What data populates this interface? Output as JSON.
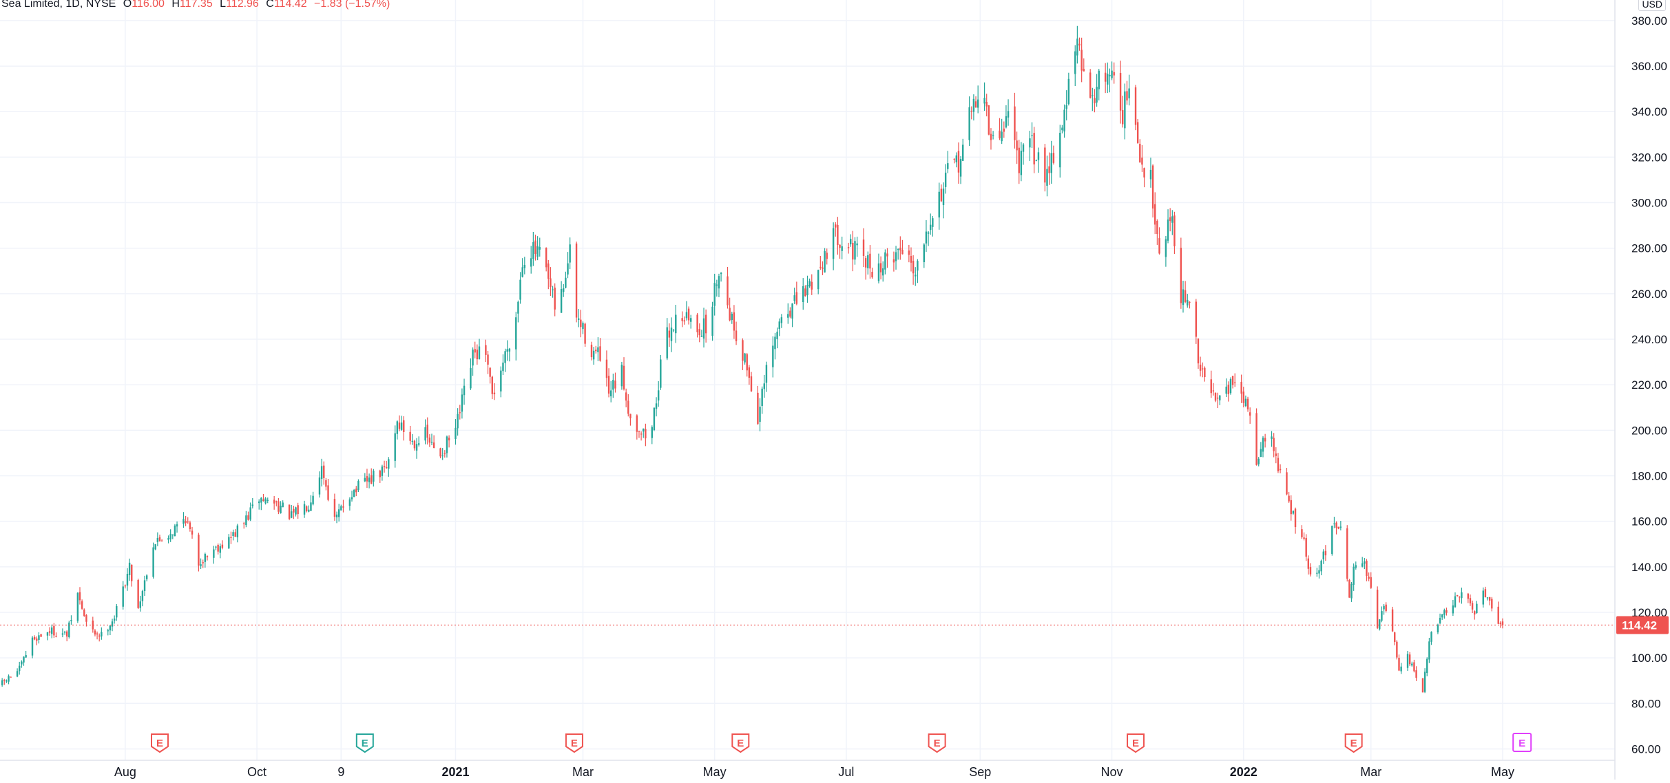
{
  "legend": {
    "symbol": "Sea Limited, 1D, NYSE",
    "o_label": "O",
    "o": "116.00",
    "h_label": "H",
    "h": "117.35",
    "l_label": "L",
    "l": "112.96",
    "c_label": "C",
    "c": "114.42",
    "change": "−1.83 (−1.57%)"
  },
  "currency": "USD",
  "colors": {
    "up": "#26a69a",
    "down": "#ef5350",
    "grid": "#f0f3fa",
    "text": "#131722",
    "price_line": "#ef5350",
    "event_future": "#e040fb"
  },
  "chart_data": {
    "type": "candlestick",
    "title": "Sea Limited, 1D, NYSE",
    "ylim": [
      55,
      383
    ],
    "y_ticks": [
      60,
      80,
      100,
      120,
      140,
      160,
      180,
      200,
      220,
      240,
      260,
      280,
      300,
      320,
      340,
      360,
      380
    ],
    "y_tick_labels": [
      "60.00",
      "80.00",
      "100.00",
      "120.00",
      "140.00",
      "160.00",
      "180.00",
      "200.00",
      "220.00",
      "240.00",
      "260.00",
      "280.00",
      "300.00",
      "320.00",
      "340.00",
      "360.00",
      "380.00"
    ],
    "x_ticks": [
      {
        "label": "Aug",
        "day": 29,
        "bold": false
      },
      {
        "label": "Oct",
        "day": 90,
        "bold": false
      },
      {
        "label": "9",
        "day": 129,
        "bold": false
      },
      {
        "label": "2021",
        "day": 182,
        "bold": true
      },
      {
        "label": "Mar",
        "day": 241,
        "bold": false
      },
      {
        "label": "May",
        "day": 302,
        "bold": false
      },
      {
        "label": "Jul",
        "day": 363,
        "bold": false
      },
      {
        "label": "Sep",
        "day": 425,
        "bold": false
      },
      {
        "label": "Nov",
        "day": 486,
        "bold": false
      },
      {
        "label": "2022",
        "day": 547,
        "bold": true
      },
      {
        "label": "Mar",
        "day": 606,
        "bold": false
      },
      {
        "label": "May",
        "day": 667,
        "bold": false
      }
    ],
    "x_range_days": [
      -29,
      719
    ],
    "last_price": 114.42,
    "last_price_label": "114.42",
    "earnings_events": [
      {
        "day": 45,
        "label": "E",
        "kind": "past"
      },
      {
        "day": 140,
        "label": "E",
        "kind": "positive"
      },
      {
        "day": 237,
        "label": "E",
        "kind": "past"
      },
      {
        "day": 314,
        "label": "E",
        "kind": "past"
      },
      {
        "day": 405,
        "label": "E",
        "kind": "past"
      },
      {
        "day": 497,
        "label": "E",
        "kind": "past"
      },
      {
        "day": 598,
        "label": "E",
        "kind": "past"
      },
      {
        "day": 676,
        "label": "E",
        "kind": "future"
      }
    ],
    "series_anchors_close": [
      [
        -29,
        88
      ],
      [
        -20,
        95
      ],
      [
        -14,
        108
      ],
      [
        -6,
        112
      ],
      [
        2,
        110
      ],
      [
        7,
        128
      ],
      [
        12,
        112
      ],
      [
        18,
        110
      ],
      [
        24,
        118
      ],
      [
        31,
        140
      ],
      [
        35,
        122
      ],
      [
        42,
        150
      ],
      [
        50,
        155
      ],
      [
        57,
        162
      ],
      [
        63,
        142
      ],
      [
        70,
        148
      ],
      [
        77,
        152
      ],
      [
        83,
        158
      ],
      [
        91,
        170
      ],
      [
        99,
        168
      ],
      [
        106,
        162
      ],
      [
        114,
        168
      ],
      [
        120,
        184
      ],
      [
        126,
        160
      ],
      [
        133,
        172
      ],
      [
        142,
        178
      ],
      [
        150,
        183
      ],
      [
        155,
        204
      ],
      [
        162,
        195
      ],
      [
        168,
        198
      ],
      [
        174,
        188
      ],
      [
        182,
        200
      ],
      [
        190,
        232
      ],
      [
        195,
        236
      ],
      [
        199,
        215
      ],
      [
        204,
        230
      ],
      [
        210,
        250
      ],
      [
        213,
        275
      ],
      [
        216,
        280
      ],
      [
        222,
        276
      ],
      [
        229,
        250
      ],
      [
        235,
        278
      ],
      [
        238,
        250
      ],
      [
        245,
        235
      ],
      [
        249,
        232
      ],
      [
        253,
        215
      ],
      [
        259,
        225
      ],
      [
        263,
        205
      ],
      [
        268,
        200
      ],
      [
        272,
        195
      ],
      [
        279,
        240
      ],
      [
        286,
        252
      ],
      [
        294,
        245
      ],
      [
        299,
        245
      ],
      [
        304,
        272
      ],
      [
        311,
        245
      ],
      [
        317,
        228
      ],
      [
        322,
        205
      ],
      [
        326,
        225
      ],
      [
        333,
        250
      ],
      [
        342,
        258
      ],
      [
        350,
        270
      ],
      [
        356,
        285
      ],
      [
        361,
        285
      ],
      [
        370,
        275
      ],
      [
        377,
        270
      ],
      [
        385,
        278
      ],
      [
        391,
        280
      ],
      [
        395,
        270
      ],
      [
        400,
        290
      ],
      [
        405,
        300
      ],
      [
        410,
        312
      ],
      [
        415,
        318
      ],
      [
        421,
        340
      ],
      [
        426,
        354
      ],
      [
        430,
        325
      ],
      [
        434,
        330
      ],
      [
        438,
        340
      ],
      [
        443,
        318
      ],
      [
        449,
        325
      ],
      [
        454,
        312
      ],
      [
        458,
        320
      ],
      [
        462,
        330
      ],
      [
        467,
        356
      ],
      [
        470,
        370
      ],
      [
        474,
        348
      ],
      [
        479,
        350
      ],
      [
        483,
        358
      ],
      [
        487,
        356
      ],
      [
        491,
        340
      ],
      [
        494,
        350
      ],
      [
        499,
        318
      ],
      [
        504,
        310
      ],
      [
        508,
        280
      ],
      [
        514,
        295
      ],
      [
        518,
        258
      ],
      [
        522,
        258
      ],
      [
        526,
        230
      ],
      [
        532,
        215
      ],
      [
        536,
        218
      ],
      [
        541,
        220
      ],
      [
        546,
        215
      ],
      [
        549,
        210
      ],
      [
        553,
        188
      ],
      [
        559,
        200
      ],
      [
        564,
        180
      ],
      [
        570,
        162
      ],
      [
        575,
        150
      ],
      [
        579,
        130
      ],
      [
        584,
        145
      ],
      [
        589,
        158
      ],
      [
        592,
        160
      ],
      [
        596,
        128
      ],
      [
        600,
        148
      ],
      [
        605,
        135
      ],
      [
        609,
        115
      ],
      [
        612,
        122
      ],
      [
        616,
        112
      ],
      [
        619,
        93
      ],
      [
        623,
        100
      ],
      [
        627,
        92
      ],
      [
        630,
        86
      ],
      [
        634,
        112
      ],
      [
        639,
        118
      ],
      [
        645,
        125
      ],
      [
        650,
        128
      ],
      [
        654,
        120
      ],
      [
        657,
        132
      ],
      [
        661,
        125
      ],
      [
        664,
        118
      ],
      [
        667,
        114.42
      ]
    ]
  }
}
